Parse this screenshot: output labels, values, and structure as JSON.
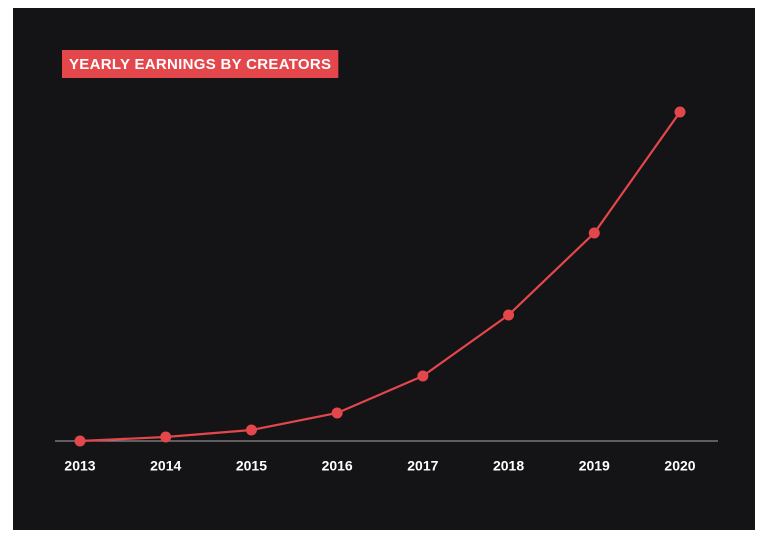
{
  "chart_data": {
    "type": "line",
    "title": "YEARLY EARNINGS BY CREATORS",
    "categories": [
      "2013",
      "2014",
      "2015",
      "2016",
      "2017",
      "2018",
      "2019",
      "2020"
    ],
    "values": [
      0,
      4,
      11,
      28,
      65,
      126,
      208,
      329
    ],
    "color": "#e3474c",
    "ylim": [
      0,
      350
    ]
  }
}
